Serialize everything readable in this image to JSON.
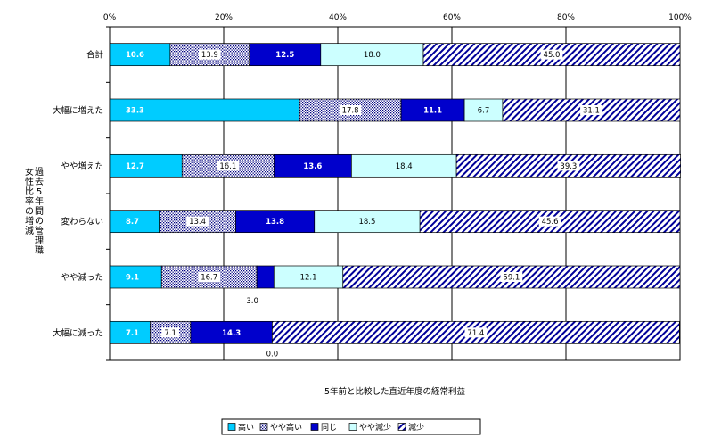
{
  "chart_data": {
    "type": "bar",
    "orientation": "horizontal",
    "stacked": true,
    "categories": [
      "合計",
      "大幅に増えた",
      "やや増えた",
      "変わらない",
      "やや減った",
      "大幅に減った"
    ],
    "series": [
      {
        "name": "高い",
        "color": "#00ccff",
        "values": [
          10.6,
          33.3,
          12.7,
          8.7,
          9.1,
          7.1
        ]
      },
      {
        "name": "やや高い",
        "color": "#000080",
        "values": [
          13.9,
          17.8,
          16.1,
          13.4,
          16.7,
          7.1
        ]
      },
      {
        "name": "同じ",
        "color": "#0000cc",
        "values": [
          12.5,
          11.1,
          13.6,
          13.8,
          3.0,
          14.3
        ]
      },
      {
        "name": "やや減少",
        "color": "#ccffff",
        "values": [
          18.0,
          6.7,
          18.4,
          18.5,
          12.1,
          0.0
        ]
      },
      {
        "name": "減少",
        "color": "#000099",
        "values": [
          45.0,
          31.1,
          39.3,
          45.6,
          59.1,
          71.4
        ]
      }
    ],
    "xticks": [
      "0%",
      "20%",
      "40%",
      "60%",
      "80%",
      "100%"
    ],
    "xlim": [
      0,
      100
    ],
    "xlabel": "5年前と比較した直近年度の経常利益",
    "ylabel": "過去5年間の管理職女性比率の増減",
    "legend_position": "bottom",
    "grid": "vertical"
  }
}
